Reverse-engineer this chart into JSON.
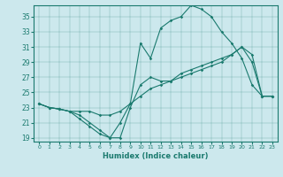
{
  "xlabel": "Humidex (Indice chaleur)",
  "bg_color": "#cce8ed",
  "line_color": "#1a7a6e",
  "xlim": [
    -0.5,
    23.5
  ],
  "ylim": [
    18.5,
    36.5
  ],
  "xticks": [
    0,
    1,
    2,
    3,
    4,
    5,
    6,
    7,
    8,
    9,
    10,
    11,
    12,
    13,
    14,
    15,
    16,
    17,
    18,
    19,
    20,
    21,
    22,
    23
  ],
  "yticks": [
    19,
    21,
    23,
    25,
    27,
    29,
    31,
    33,
    35
  ],
  "series1_x": [
    0,
    1,
    2,
    3,
    4,
    5,
    6,
    7,
    8,
    9,
    10,
    11,
    12,
    13,
    14,
    15,
    16,
    17,
    18,
    19,
    20,
    21,
    22,
    23
  ],
  "series1_y": [
    23.5,
    23.0,
    22.8,
    22.5,
    22.5,
    22.5,
    22.0,
    22.0,
    22.5,
    23.5,
    24.5,
    25.5,
    26.0,
    26.5,
    27.0,
    27.5,
    28.0,
    28.5,
    29.0,
    30.0,
    31.0,
    29.0,
    24.5,
    24.5
  ],
  "series2_x": [
    0,
    1,
    2,
    3,
    4,
    5,
    6,
    7,
    8,
    9,
    10,
    11,
    12,
    13,
    14,
    15,
    16,
    17,
    18,
    19,
    20,
    21,
    22,
    23
  ],
  "series2_y": [
    23.5,
    23.0,
    22.8,
    22.5,
    22.0,
    21.0,
    20.0,
    19.0,
    19.0,
    23.0,
    26.0,
    27.0,
    26.5,
    26.5,
    27.5,
    28.0,
    28.5,
    29.0,
    29.5,
    30.0,
    31.0,
    30.0,
    24.5,
    24.5
  ],
  "series3_x": [
    0,
    1,
    2,
    3,
    4,
    5,
    6,
    7,
    8,
    9,
    10,
    11,
    12,
    13,
    14,
    15,
    16,
    17,
    18,
    19,
    20,
    21,
    22,
    23
  ],
  "series3_y": [
    23.5,
    23.0,
    22.8,
    22.5,
    21.5,
    20.5,
    19.5,
    19.0,
    21.0,
    23.5,
    31.5,
    29.5,
    33.5,
    34.5,
    35.0,
    36.5,
    36.0,
    35.0,
    33.0,
    31.5,
    29.5,
    26.0,
    24.5,
    24.5
  ]
}
